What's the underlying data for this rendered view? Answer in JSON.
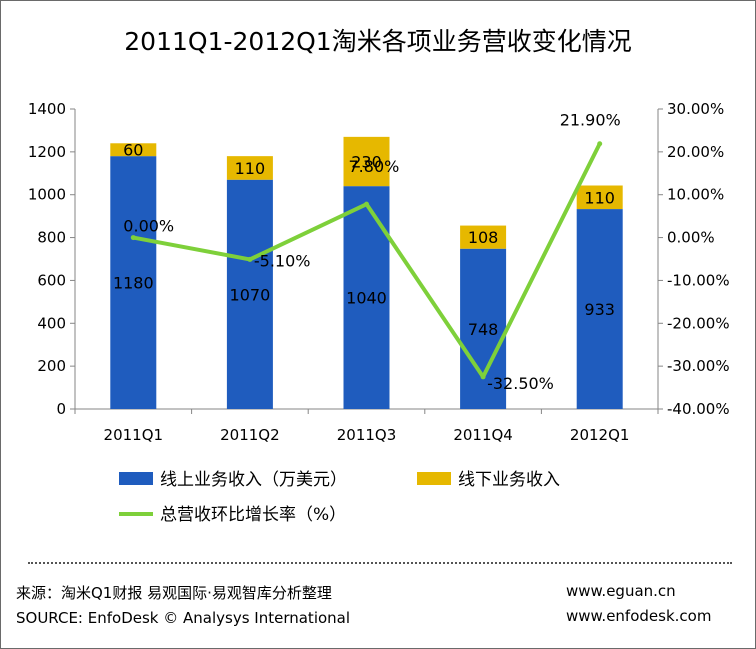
{
  "header": {
    "title": "2011Q1-2012Q1淘米各项业务营收变化情况"
  },
  "chart_data": {
    "type": "bar",
    "stacked": true,
    "categories": [
      "2011Q1",
      "2011Q2",
      "2011Q3",
      "2011Q4",
      "2012Q1"
    ],
    "series": [
      {
        "name": "线上业务收入（万美元）",
        "values": [
          1180,
          1070,
          1040,
          748,
          933
        ],
        "color": "#1f5cbe",
        "kind": "bar"
      },
      {
        "name": "线下业务收入",
        "values": [
          60,
          110,
          230,
          108,
          110
        ],
        "color": "#e6b800",
        "kind": "bar"
      },
      {
        "name": "总营收环比增长率（%）",
        "values": [
          0.0,
          -5.1,
          7.8,
          -32.5,
          21.9
        ],
        "labels": [
          "0.00%",
          "-5.10%",
          "7.80%",
          "-32.50%",
          "21.90%"
        ],
        "color": "#7ed03a",
        "kind": "line",
        "axis": "right"
      }
    ],
    "left_axis": {
      "ylim": [
        0,
        1400
      ],
      "ticks": [
        "0",
        "200",
        "400",
        "600",
        "800",
        "1000",
        "1200",
        "1400"
      ]
    },
    "right_axis": {
      "ylim": [
        -40,
        30
      ],
      "ticks": [
        "-40.00%",
        "-30.00%",
        "-20.00%",
        "-10.00%",
        "0.00%",
        "10.00%",
        "20.00%",
        "30.00%"
      ]
    },
    "legend_position": "bottom"
  },
  "footer": {
    "source_cn": "来源：淘米Q1财报 易观国际·易观智库分析整理",
    "source_en": "SOURCE: EnfoDesk © Analysys International",
    "url1": "www.eguan.cn",
    "url2": "www.enfodesk.com"
  }
}
